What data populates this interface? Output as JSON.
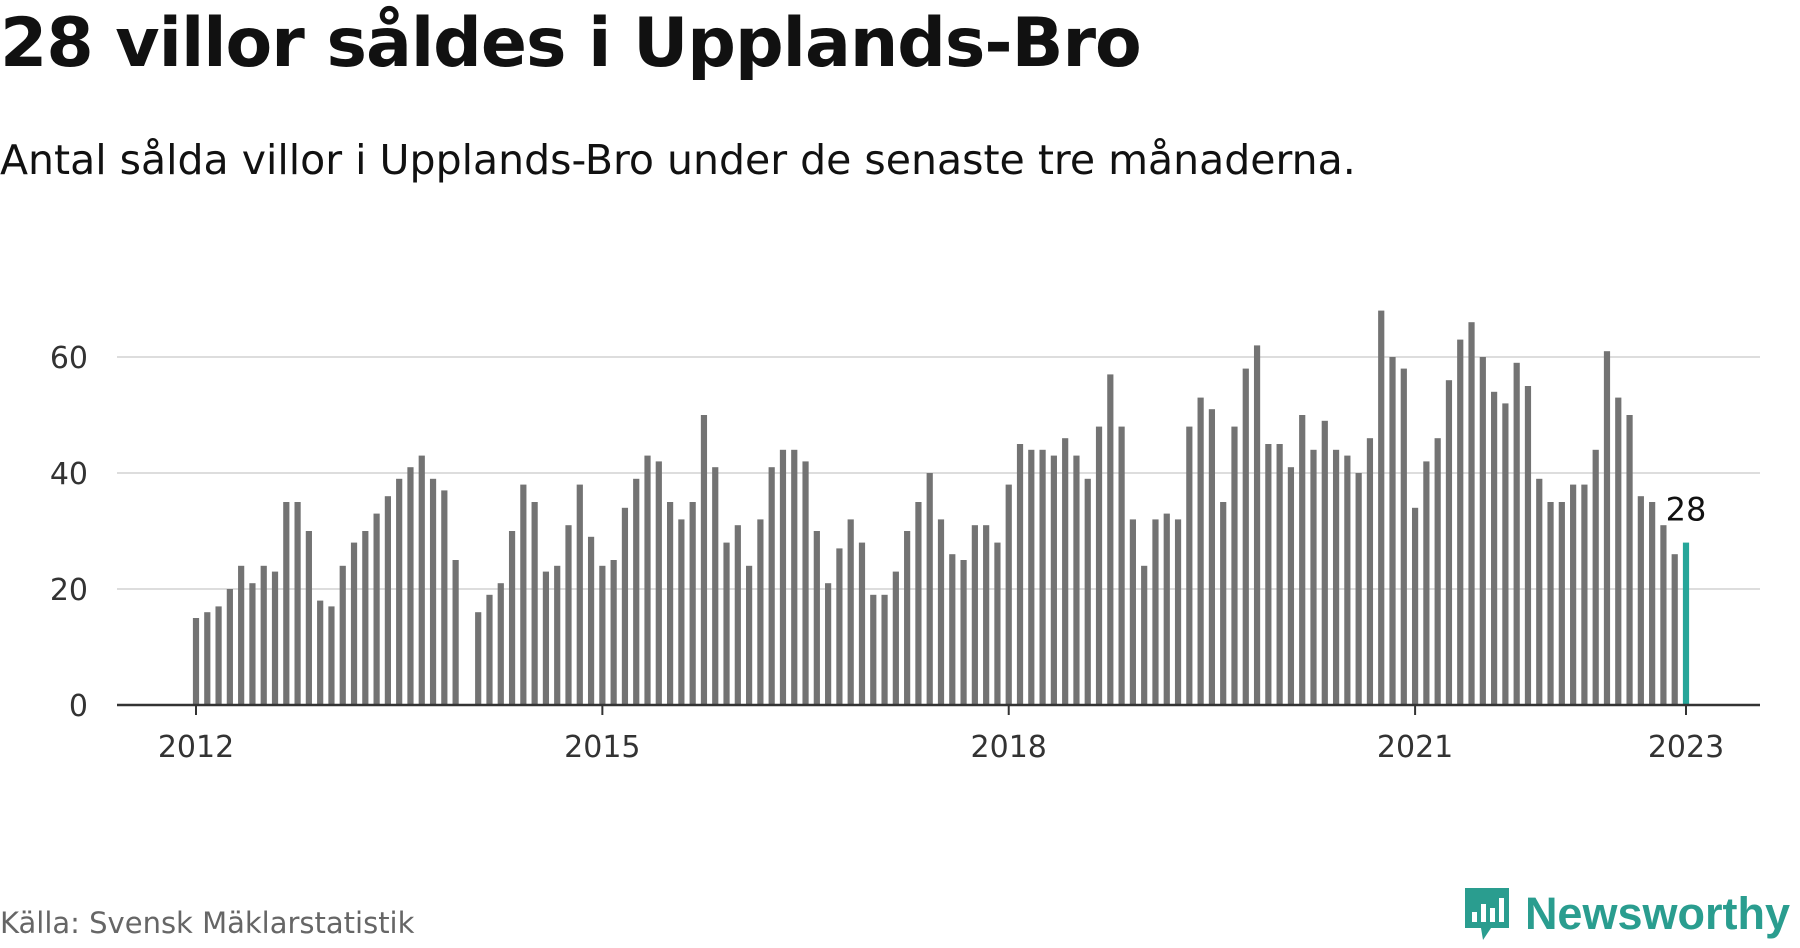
{
  "title": "28 villor såldes i Upplands-Bro",
  "subtitle": "Antal sålda villor i Upplands-Bro under de senaste tre månaderna.",
  "source": "Källa: Svensk Mäklarstatistik",
  "brand": {
    "name": "Newsworthy",
    "icon": "newsworthy-logo-icon",
    "color": "#2a9d8f"
  },
  "colors": {
    "bar": "#737373",
    "highlight": "#26a69a",
    "grid": "#dddddd",
    "axis": "#333333"
  },
  "chart_data": {
    "type": "bar",
    "title": "28 villor såldes i Upplands-Bro",
    "subtitle": "Antal sålda villor i Upplands-Bro under de senaste tre månaderna.",
    "xlabel": "",
    "ylabel": "",
    "x_start": "2012-01",
    "x_end": "2023-01",
    "x_ticks": [
      "2012",
      "2015",
      "2018",
      "2021",
      "2023"
    ],
    "y_ticks": [
      0,
      20,
      40,
      60
    ],
    "ylim": [
      0,
      70
    ],
    "grid": true,
    "highlight_last": true,
    "last_label": "28",
    "series": [
      {
        "values": [
          15,
          16,
          17,
          20,
          24,
          21,
          24,
          23,
          35,
          35,
          30,
          18,
          17,
          24,
          28,
          30,
          33,
          36,
          39,
          41,
          43,
          39,
          37,
          25,
          null,
          16,
          19,
          21,
          30,
          38,
          35,
          23,
          24,
          31,
          38,
          29,
          24,
          25,
          34,
          39,
          43,
          42,
          35,
          32,
          35,
          50,
          41,
          28,
          31,
          24,
          32,
          41,
          44,
          44,
          42,
          30,
          21,
          27,
          32,
          28,
          19,
          19,
          23,
          30,
          35,
          40,
          32,
          26,
          25,
          31,
          31,
          28,
          38,
          45,
          44,
          44,
          43,
          46,
          43,
          39,
          48,
          57,
          48,
          32,
          24,
          32,
          33,
          32,
          48,
          53,
          51,
          35,
          48,
          58,
          62,
          45,
          45,
          41,
          50,
          44,
          49,
          44,
          43,
          40,
          46,
          68,
          60,
          58,
          34,
          42,
          46,
          56,
          63,
          66,
          60,
          54,
          52,
          59,
          55,
          39,
          35,
          35,
          38,
          38,
          44,
          61,
          53,
          50,
          36,
          35,
          31,
          26,
          28
        ]
      }
    ]
  }
}
